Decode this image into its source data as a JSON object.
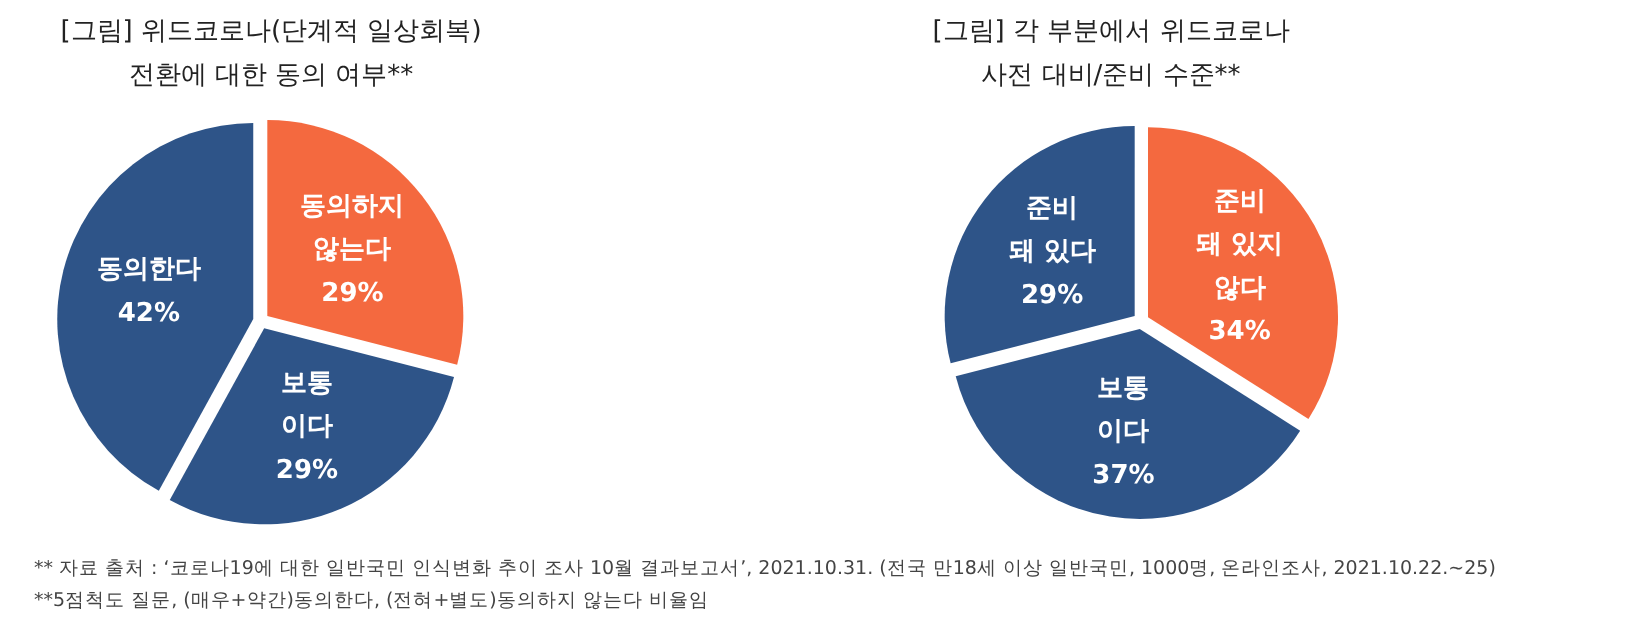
{
  "chart_data": [
    {
      "type": "pie",
      "title": "[그림] 위드코로나(단계적 일상회복)\n전환에 대한 동의 여부**",
      "categories": [
        "동의하지\n않는다",
        "보통\n이다",
        "동의한다"
      ],
      "values": [
        29,
        29,
        42
      ],
      "value_labels": [
        "29%",
        "29%",
        "42%"
      ],
      "colors": [
        "#f4693f",
        "#2e5488",
        "#2e5488"
      ],
      "annotations": [
        "** 자료 출처 : ‘코로나19에 대한 일반국민 인식변화 추이 조사 10월 결과보고서’, 2021.10.31. (전국 만18세 이상 일반국민, 1000명, 온라인조사, 2021.10.22.~25)",
        "**5점척도 질문, (매우+약간)동의한다, (전혀+별도)동의하지 않는다 비율임"
      ]
    },
    {
      "type": "pie",
      "title": "[그림] 각 부분에서 위드코로나\n사전 대비/준비 수준**",
      "categories": [
        "준비\n돼 있지\n않다",
        "보통\n이다",
        "준비\n돼 있다"
      ],
      "values": [
        34,
        37,
        29
      ],
      "value_labels": [
        "34%",
        "37%",
        "29%"
      ],
      "colors": [
        "#f4693f",
        "#2e5488",
        "#2e5488"
      ]
    }
  ]
}
